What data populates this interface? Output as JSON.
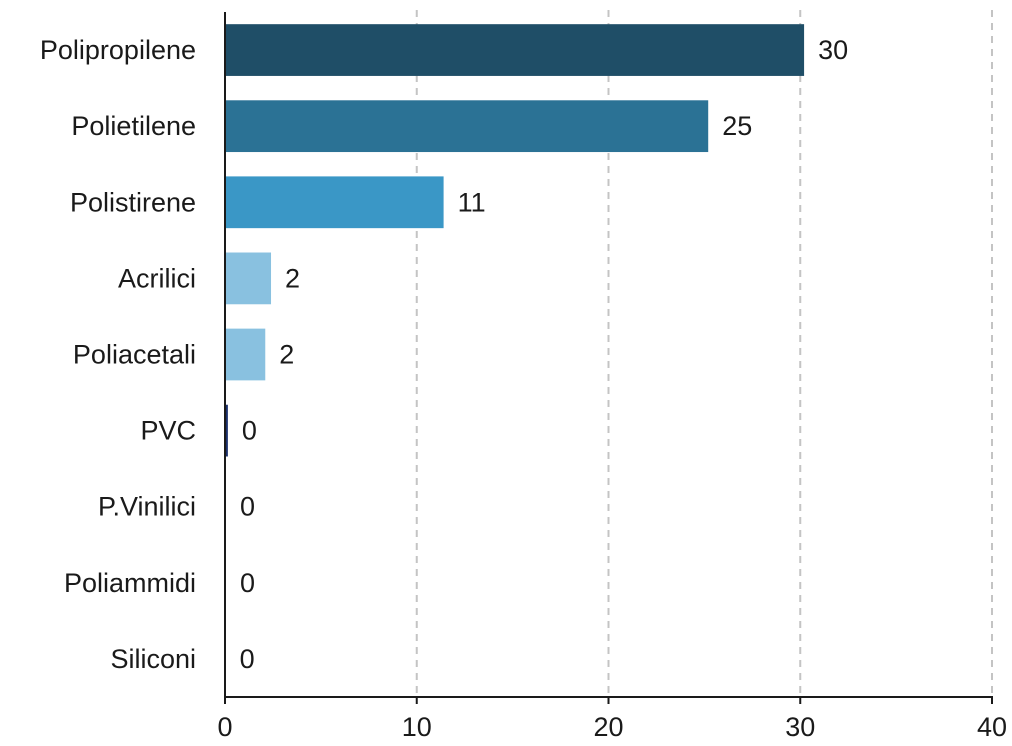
{
  "chart_data": {
    "type": "bar",
    "orientation": "horizontal",
    "categories": [
      "Polipropilene",
      "Polietilene",
      "Polistirene",
      "Acrilici",
      "Poliacetali",
      "PVC",
      "P.Vinilici",
      "Poliammidi",
      "Siliconi"
    ],
    "values": [
      30.2,
      25.2,
      11.4,
      2.4,
      2.1,
      0.15,
      0.05,
      0.05,
      0.02
    ],
    "data_labels": [
      "30",
      "25",
      "11",
      "2",
      "2",
      "0",
      "0",
      "0",
      "0"
    ],
    "colors": [
      "#1f4e67",
      "#2b7295",
      "#3a97c6",
      "#89c1e0",
      "#89c1e0",
      "#1a2f6b",
      "#1a2f6b",
      "#1a2f6b",
      "#1a2f6b"
    ],
    "xlim": [
      0,
      40
    ],
    "xticks": [
      0,
      10,
      20,
      30,
      40
    ],
    "title": "",
    "xlabel": "",
    "ylabel": "",
    "grid": "vertical dashed",
    "legend": "none"
  }
}
